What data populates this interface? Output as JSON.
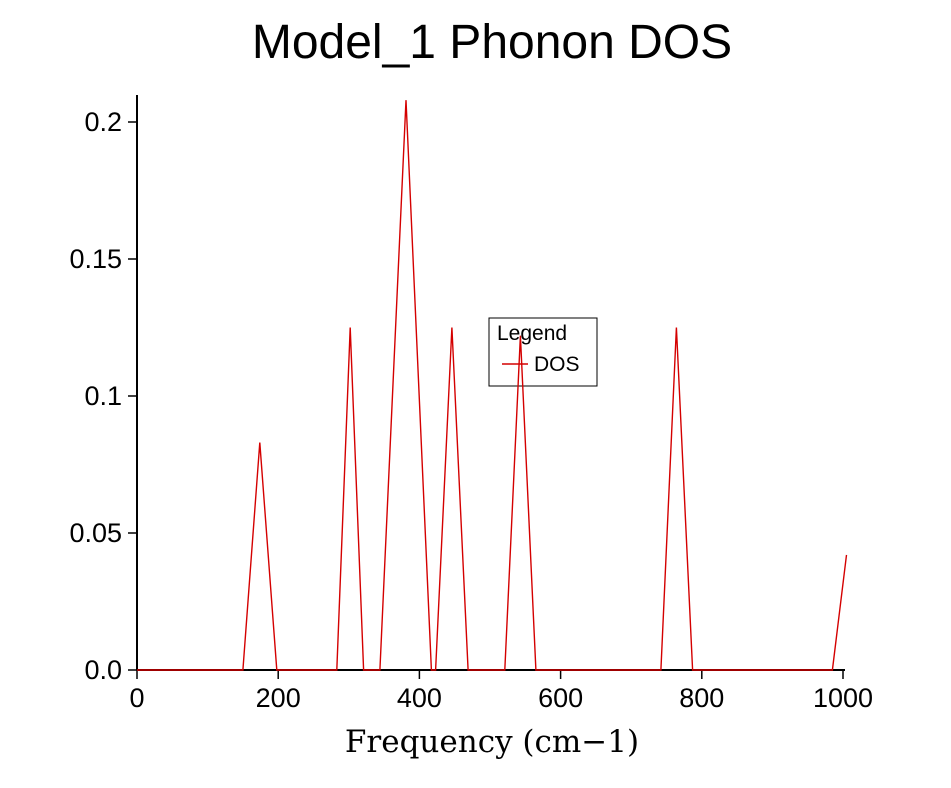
{
  "chart_data": {
    "type": "line",
    "title": "Model_1 Phonon DOS",
    "xlabel": "Frequency (cm−1)",
    "ylabel": "",
    "xlim": [
      0,
      1000
    ],
    "ylim": [
      0.0,
      0.2
    ],
    "xticks": [
      "0",
      "200",
      "400",
      "600",
      "800",
      "1000"
    ],
    "yticks": [
      "0.0",
      "0.05",
      "0.1",
      "0.15",
      "0.2"
    ],
    "grid": false,
    "legend": {
      "title": "Legend",
      "position": "center-right-of-plot",
      "entries": [
        {
          "label": "DOS",
          "color": "#d40000"
        }
      ]
    },
    "series": [
      {
        "name": "DOS",
        "color": "#d40000",
        "points": [
          [
            0,
            0
          ],
          [
            150,
            0
          ],
          [
            174,
            0.083
          ],
          [
            198,
            0
          ],
          [
            283,
            0
          ],
          [
            302,
            0.125
          ],
          [
            321,
            0
          ],
          [
            344,
            0
          ],
          [
            381,
            0.208
          ],
          [
            417,
            0
          ],
          [
            423,
            0
          ],
          [
            446,
            0.125
          ],
          [
            469,
            0
          ],
          [
            521,
            0
          ],
          [
            543,
            0.122
          ],
          [
            565,
            0
          ],
          [
            742,
            0
          ],
          [
            764,
            0.125
          ],
          [
            787,
            0
          ],
          [
            985,
            0
          ],
          [
            1005,
            0.042
          ]
        ]
      }
    ]
  }
}
